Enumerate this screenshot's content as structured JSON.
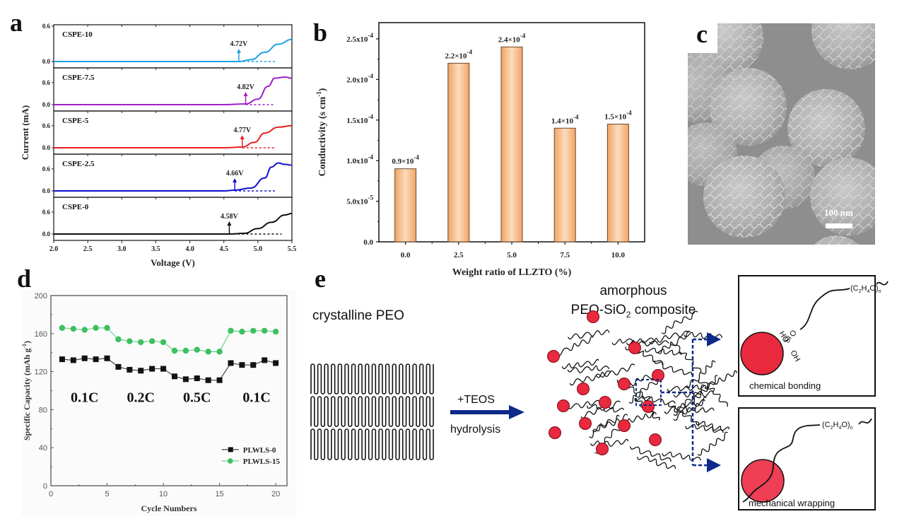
{
  "panels": {
    "a": {
      "letter": "a"
    },
    "b": {
      "letter": "b"
    },
    "c": {
      "letter": "c",
      "scale_bar_label": "100 nm",
      "description": "SEM image of spherical particles with wrinkled surface morphology"
    },
    "d": {
      "letter": "d"
    },
    "e": {
      "letter": "e",
      "left_label": "crystalline PEO",
      "arrow_top_label": "+TEOS",
      "arrow_bottom_label": "hydrolysis",
      "right_label_line1": "amorphous",
      "right_label_line2_prefix": "PEO-SiO",
      "right_label_line2_sub": "2",
      "right_label_line2_suffix": " composite",
      "box1_caption": "chemical bonding",
      "box2_caption": "mechanical wrapping",
      "chain_formula": "(C2H4O)n",
      "bond_labels": [
        "HO",
        "Si",
        "O",
        "OH"
      ],
      "particle_color": "#e8293e",
      "arrow_color": "#0d2a8a"
    }
  },
  "chart_data": [
    {
      "type": "line",
      "panel": "a",
      "title": "",
      "xlabel": "Voltage (V)",
      "ylabel": "Current (mA)",
      "xlim": [
        2.0,
        5.5
      ],
      "x_ticks": [
        "2.0",
        "2.5",
        "3.0",
        "3.5",
        "4.0",
        "4.5",
        "5.0",
        "5.5"
      ],
      "y_ticks": [
        "0.0",
        "0.6"
      ],
      "series": [
        {
          "name": "CSPE-10",
          "color": "#1ea0e6",
          "onset_label": "4.72V",
          "onset": 4.72,
          "x": [
            2.0,
            4.5,
            4.72,
            4.9,
            5.1,
            5.3,
            5.5
          ],
          "y": [
            0.0,
            0.0,
            0.0,
            0.05,
            0.25,
            0.47,
            0.6
          ]
        },
        {
          "name": "CSPE-7.5",
          "color": "#a020c8",
          "onset_label": "4.82V",
          "onset": 4.82,
          "x": [
            2.0,
            4.5,
            4.82,
            5.0,
            5.15,
            5.25,
            5.4,
            5.5
          ],
          "y": [
            0.0,
            0.0,
            0.02,
            0.15,
            0.5,
            0.72,
            0.75,
            0.72
          ]
        },
        {
          "name": "CSPE-5",
          "color": "#e82020",
          "onset_label": "4.77V",
          "onset": 4.77,
          "x": [
            2.0,
            4.5,
            4.77,
            4.95,
            5.1,
            5.3,
            5.5
          ],
          "y": [
            0.0,
            0.0,
            0.02,
            0.15,
            0.4,
            0.56,
            0.6
          ]
        },
        {
          "name": "CSPE-2.5",
          "color": "#1010d0",
          "onset_label": "4.66V",
          "onset": 4.66,
          "x": [
            2.0,
            4.5,
            4.66,
            4.9,
            5.1,
            5.2,
            5.3,
            5.4,
            5.5
          ],
          "y": [
            0.0,
            0.0,
            0.02,
            0.08,
            0.35,
            0.65,
            0.76,
            0.72,
            0.7
          ]
        },
        {
          "name": "CSPE-0",
          "color": "#111111",
          "onset_label": "4.58V",
          "onset": 4.58,
          "x": [
            2.0,
            4.5,
            4.58,
            4.8,
            5.0,
            5.2,
            5.4,
            5.5
          ],
          "y": [
            0.0,
            0.0,
            0.0,
            0.02,
            0.15,
            0.32,
            0.52,
            0.56
          ]
        }
      ]
    },
    {
      "type": "bar",
      "panel": "b",
      "title": "",
      "xlabel": "Weight ratio of LLZTO (%)",
      "ylabel": "Conductivity (s cm-1)",
      "categories": [
        "0.0",
        "2.5",
        "5.0",
        "7.5",
        "10.0"
      ],
      "values": [
        9e-05,
        0.00022,
        0.00024,
        0.00014,
        0.000145
      ],
      "data_labels": [
        "0.9×10-4",
        "2.2×10-4",
        "2.4×10-4",
        "1.4×10-4",
        "1.5×10-4"
      ],
      "ylim": [
        0,
        0.00027
      ],
      "y_ticks": [
        {
          "value": 0,
          "label": "0.0"
        },
        {
          "value": 5e-05,
          "label": "5.0x10-5"
        },
        {
          "value": 0.0001,
          "label": "1.0x10-4"
        },
        {
          "value": 0.00015,
          "label": "1.5x10-4"
        },
        {
          "value": 0.0002,
          "label": "2.0x10-4"
        },
        {
          "value": 0.00025,
          "label": "2.5x10-4"
        }
      ],
      "bar_color": "#f5b07c"
    },
    {
      "type": "line",
      "panel": "d",
      "title": "",
      "xlabel": "Cycle Numbers",
      "ylabel": "Specific Capacity (mAh g-1)",
      "xlim": [
        0,
        21
      ],
      "ylim": [
        0,
        200
      ],
      "x_ticks": [
        0,
        5,
        10,
        15,
        20
      ],
      "y_ticks": [
        0,
        40,
        80,
        120,
        160,
        200
      ],
      "annotations": [
        "0.1C",
        "0.2C",
        "0.5C",
        "0.1C"
      ],
      "legend_position": "bottom-right",
      "x": [
        1,
        2,
        3,
        4,
        5,
        6,
        7,
        8,
        9,
        10,
        11,
        12,
        13,
        14,
        15,
        16,
        17,
        18,
        19,
        20
      ],
      "series": [
        {
          "name": "PLWLS-0",
          "color": "#111111",
          "marker": "square",
          "values": [
            133,
            132,
            134,
            133,
            134,
            125,
            122,
            121,
            123,
            123,
            115,
            112,
            113,
            111,
            111,
            129,
            127,
            127,
            132,
            129
          ]
        },
        {
          "name": "PLWLS-15",
          "color": "#3cc060",
          "marker": "circle",
          "values": [
            166,
            165,
            164,
            166,
            166,
            154,
            152,
            151,
            152,
            151,
            142,
            142,
            143,
            141,
            141,
            163,
            162,
            163,
            163,
            162
          ]
        }
      ]
    }
  ]
}
